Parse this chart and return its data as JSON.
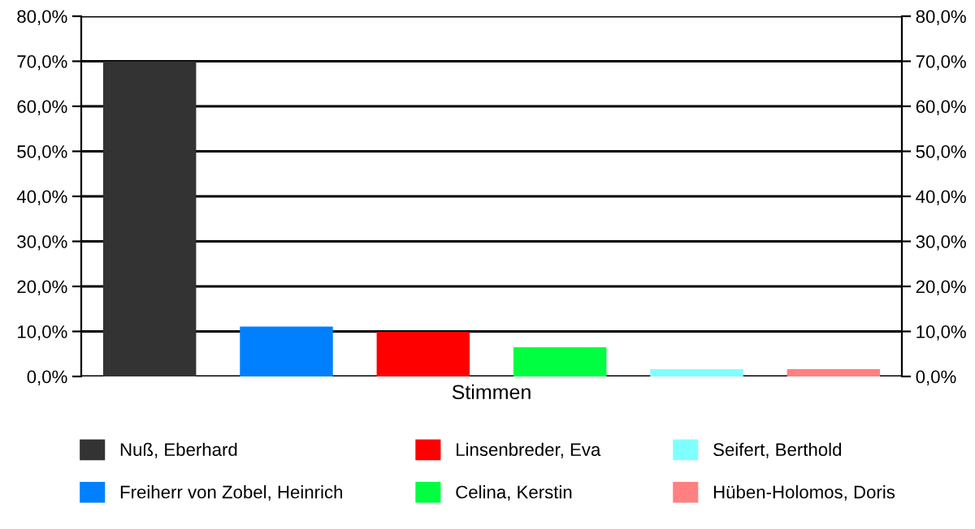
{
  "chart_data": {
    "type": "bar",
    "categories": [
      "Stimmen"
    ],
    "series": [
      {
        "name": "Nuß, Eberhard",
        "color": "#333333",
        "values": [
          70.0
        ]
      },
      {
        "name": "Freiherr von Zobel, Heinrich",
        "color": "#0080ff",
        "values": [
          11.1
        ]
      },
      {
        "name": "Linsenbreder, Eva",
        "color": "#ff0000",
        "values": [
          9.9
        ]
      },
      {
        "name": "Celina, Kerstin",
        "color": "#00ff40",
        "values": [
          6.5
        ]
      },
      {
        "name": "Seifert, Berthold",
        "color": "#80ffff",
        "values": [
          1.6
        ]
      },
      {
        "name": "Hüben-Holomos, Doris",
        "color": "#ff8080",
        "values": [
          1.6
        ]
      }
    ],
    "ylim": [
      0,
      80
    ],
    "yticks": [
      {
        "value": 0,
        "label": "0,0%"
      },
      {
        "value": 10,
        "label": "10,0%"
      },
      {
        "value": 20,
        "label": "20,0%"
      },
      {
        "value": 30,
        "label": "30,0%"
      },
      {
        "value": 40,
        "label": "40,0%"
      },
      {
        "value": 50,
        "label": "50,0%"
      },
      {
        "value": 60,
        "label": "60,0%"
      },
      {
        "value": 70,
        "label": "70,0%"
      },
      {
        "value": 80,
        "label": "80,0%"
      }
    ],
    "grid": "y",
    "legend": "bottom"
  }
}
